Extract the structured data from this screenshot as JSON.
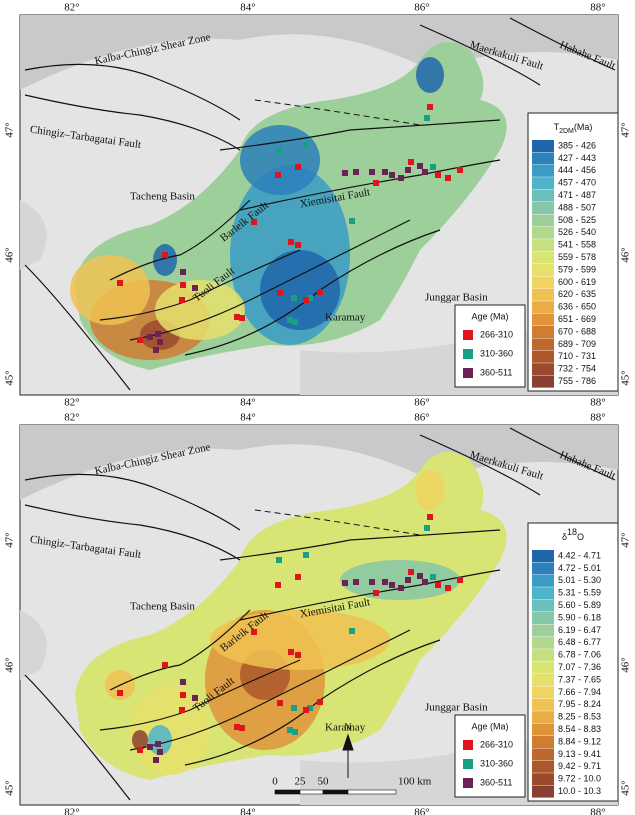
{
  "lon_labels": [
    "82°",
    "84°",
    "86°",
    "88°"
  ],
  "lat_labels": [
    "47°",
    "46°",
    "45°"
  ],
  "places": [
    "Kalba-Chingiz Shear Zone",
    "Maerkakuli Fault",
    "Habahe Fault",
    "Chingiz–Tarbagatai Fault",
    "Tacheng Basin",
    "Xiemisitai Fault",
    "Barleik Fault",
    "Tuoli Fault",
    "Karamay",
    "Junggar Basin"
  ],
  "age_legend": {
    "title": "Age (Ma)",
    "items": [
      {
        "label": "266-310",
        "color": "#e0141c"
      },
      {
        "label": "310-360",
        "color": "#17a086"
      },
      {
        "label": "360-511",
        "color": "#6b2356"
      }
    ]
  },
  "panels": [
    {
      "legend_title": {
        "main": "T",
        "sub": "2DM",
        "unit": "(Ma)"
      },
      "ranges": [
        "385 - 426",
        "427 - 443",
        "444 - 456",
        "457 - 470",
        "471 - 487",
        "488 - 507",
        "508 - 525",
        "526 - 540",
        "541 - 558",
        "559 - 578",
        "579 - 599",
        "600 - 619",
        "620 - 635",
        "636 - 650",
        "651 - 669",
        "670 - 688",
        "689 - 709",
        "710 - 731",
        "732 - 754",
        "755 - 786"
      ]
    },
    {
      "legend_title": {
        "main": "δ",
        "sup": "18",
        "unit": "O"
      },
      "ranges": [
        "4.42 - 4.71",
        "4.72 - 5.01",
        "5.01 - 5.30",
        "5.31 - 5.59",
        "5.60 - 5.89",
        "5.90 - 6.18",
        "6.19 - 6.47",
        "6.48 - 6.77",
        "6.78 - 7.06",
        "7.07 - 7.36",
        "7.37 - 7.65",
        "7.66 - 7.94",
        "7.95 - 8.24",
        "8.25 - 8.53",
        "8.54 - 8.83",
        "8.84 - 9.12",
        "9.13 - 9.41",
        "9.42 - 9.71",
        "9.72 - 10.0",
        "10.0 - 10.3"
      ],
      "scale": {
        "ticks": [
          "0",
          "25",
          "50",
          "100 km"
        ],
        "north": "N"
      }
    }
  ],
  "ramp": [
    "#2166ac",
    "#2c80bb",
    "#3a9bc6",
    "#4fb3c9",
    "#6cc0bb",
    "#87c7a9",
    "#9ccf9a",
    "#b2d88c",
    "#c6df80",
    "#d8e474",
    "#e6e06c",
    "#efd461",
    "#f0c252",
    "#eaac45",
    "#df943a",
    "#d07c32",
    "#bf682d",
    "#ad572c",
    "#9c4a2d",
    "#8b3f30"
  ]
}
